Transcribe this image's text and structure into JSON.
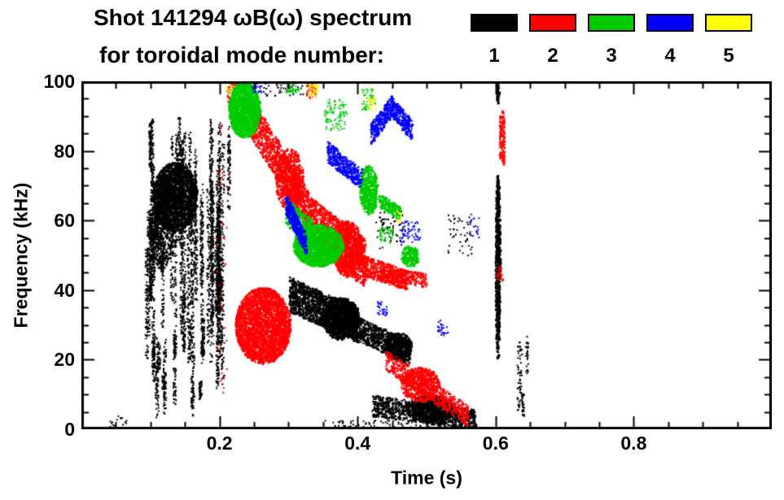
{
  "header": {
    "title_line1": "Shot 141294 ωB(ω) spectrum",
    "title_line2": "for toroidal mode number:"
  },
  "legend": {
    "items": [
      {
        "number": "1",
        "color": "#000000"
      },
      {
        "number": "2",
        "color": "#ff0000"
      },
      {
        "number": "3",
        "color": "#00cc00"
      },
      {
        "number": "4",
        "color": "#0000ff"
      },
      {
        "number": "5",
        "color": "#ffff00"
      }
    ]
  },
  "chart_data": {
    "type": "scatter",
    "title": "Shot 141294 ωB(ω) spectrum",
    "subtitle": "for toroidal mode number:",
    "xlabel": "Time (s)",
    "ylabel": "Frequency (kHz)",
    "xlim": [
      0,
      1.0
    ],
    "ylim": [
      0,
      100
    ],
    "grid": false,
    "frame_color": "#000000",
    "background": "#ffffff",
    "xticks": [
      {
        "v": 0.2,
        "label": "0.2"
      },
      {
        "v": 0.4,
        "label": "0.4"
      },
      {
        "v": 0.6,
        "label": "0.6"
      },
      {
        "v": 0.8,
        "label": "0.8"
      }
    ],
    "yticks": [
      {
        "v": 0,
        "label": "0"
      },
      {
        "v": 20,
        "label": "20"
      },
      {
        "v": 40,
        "label": "40"
      },
      {
        "v": 60,
        "label": "60"
      },
      {
        "v": 80,
        "label": "80"
      },
      {
        "v": 100,
        "label": "100"
      }
    ],
    "xtick_minor_step": 0.05,
    "ytick_minor_step": 5,
    "modes": [
      {
        "mode": 1,
        "label": "1",
        "color": "#000000"
      },
      {
        "mode": 2,
        "label": "2",
        "color": "#ff0000"
      },
      {
        "mode": 3,
        "label": "3",
        "color": "#00cc00"
      },
      {
        "mode": 4,
        "label": "4",
        "color": "#0000ff"
      },
      {
        "mode": 5,
        "label": "5",
        "color": "#ffff00"
      }
    ],
    "clusters": [
      {
        "mode": 1,
        "kind": "streaks",
        "t0": 0.09,
        "t1": 0.2,
        "fLo": 18,
        "fHi": 92,
        "count": 42,
        "pts": 90,
        "minSpan": 4,
        "maxSpan": 30
      },
      {
        "mode": 1,
        "kind": "blob",
        "t": 0.135,
        "f": 67,
        "dt": 0.032,
        "df": 10,
        "n": 1800
      },
      {
        "mode": 1,
        "kind": "blob",
        "t": 0.115,
        "f": 60,
        "dt": 0.018,
        "df": 14,
        "n": 700
      },
      {
        "mode": 1,
        "kind": "streaks",
        "t0": 0.1,
        "t1": 0.19,
        "fLo": 3,
        "fHi": 30,
        "count": 14,
        "pts": 40,
        "minSpan": 2,
        "maxSpan": 10
      },
      {
        "mode": 1,
        "kind": "streaks",
        "t0": 0.195,
        "t1": 0.215,
        "fLo": 10,
        "fHi": 95,
        "count": 7,
        "pts": 80,
        "minSpan": 8,
        "maxSpan": 35
      },
      {
        "mode": 1,
        "kind": "band",
        "t0": 0.3,
        "f0": 39,
        "t1": 0.4,
        "f1": 30,
        "w": 5,
        "n": 1500
      },
      {
        "mode": 1,
        "kind": "blob",
        "t": 0.375,
        "f": 32,
        "dt": 0.027,
        "df": 6,
        "n": 1100
      },
      {
        "mode": 1,
        "kind": "band",
        "t0": 0.4,
        "f0": 29,
        "t1": 0.475,
        "f1": 22,
        "w": 3.5,
        "n": 700
      },
      {
        "mode": 1,
        "kind": "blob",
        "t": 0.458,
        "f": 24,
        "dt": 0.02,
        "df": 4,
        "n": 500
      },
      {
        "mode": 1,
        "kind": "band",
        "t0": 0.42,
        "f0": 7,
        "t1": 0.57,
        "f1": 3,
        "w": 3,
        "n": 900
      },
      {
        "mode": 1,
        "kind": "blob",
        "t": 0.505,
        "f": 6,
        "dt": 0.035,
        "df": 4,
        "n": 900
      },
      {
        "mode": 1,
        "kind": "blob",
        "t": 0.602,
        "f": 47,
        "dt": 0.0035,
        "df": 27,
        "n": 800
      },
      {
        "mode": 1,
        "kind": "blob",
        "t": 0.602,
        "f": 97,
        "dt": 0.002,
        "df": 3,
        "n": 80
      },
      {
        "mode": 1,
        "kind": "streaks",
        "t0": 0.625,
        "t1": 0.655,
        "fLo": 2,
        "fHi": 28,
        "count": 4,
        "pts": 30,
        "minSpan": 2,
        "maxSpan": 10
      },
      {
        "mode": 1,
        "kind": "speckle",
        "t0": 0.26,
        "t1": 0.34,
        "f0": 96,
        "f1": 100,
        "n": 50
      },
      {
        "mode": 1,
        "kind": "speckle",
        "t0": 0.425,
        "t1": 0.465,
        "f0": 52,
        "f1": 64,
        "n": 70
      },
      {
        "mode": 1,
        "kind": "speckle",
        "t0": 0.53,
        "t1": 0.565,
        "f0": 50,
        "f1": 62,
        "n": 45
      },
      {
        "mode": 1,
        "kind": "speckle",
        "t0": 0.04,
        "t1": 0.065,
        "f0": 0,
        "f1": 4,
        "n": 18
      },
      {
        "mode": 1,
        "kind": "speckle",
        "t0": 0.35,
        "t1": 0.55,
        "f0": 0,
        "f1": 3,
        "n": 120
      },
      {
        "mode": 2,
        "kind": "blob",
        "t": 0.262,
        "f": 30,
        "dt": 0.04,
        "df": 11,
        "n": 3000
      },
      {
        "mode": 2,
        "kind": "band",
        "t0": 0.245,
        "f0": 90,
        "t1": 0.33,
        "f1": 62,
        "w": 6,
        "n": 1200
      },
      {
        "mode": 2,
        "kind": "blob",
        "t": 0.3,
        "f": 72,
        "dt": 0.02,
        "df": 9,
        "n": 600
      },
      {
        "mode": 2,
        "kind": "band",
        "t0": 0.33,
        "f0": 60,
        "t1": 0.41,
        "f1": 48,
        "w": 7,
        "n": 1400
      },
      {
        "mode": 2,
        "kind": "blob",
        "t": 0.385,
        "f": 52,
        "dt": 0.022,
        "df": 8,
        "n": 800
      },
      {
        "mode": 2,
        "kind": "band",
        "t0": 0.41,
        "f0": 47,
        "t1": 0.47,
        "f1": 43,
        "w": 3,
        "n": 420
      },
      {
        "mode": 2,
        "kind": "band",
        "t0": 0.43,
        "f0": 45,
        "t1": 0.5,
        "f1": 43,
        "w": 2,
        "n": 300
      },
      {
        "mode": 2,
        "kind": "band",
        "t0": 0.44,
        "f0": 20,
        "t1": 0.56,
        "f1": 4,
        "w": 3,
        "n": 650
      },
      {
        "mode": 2,
        "kind": "blob",
        "t": 0.49,
        "f": 13,
        "dt": 0.028,
        "df": 5,
        "n": 600
      },
      {
        "mode": 2,
        "kind": "streaks",
        "t0": 0.595,
        "t1": 0.612,
        "fLo": 76,
        "fHi": 92,
        "count": 2,
        "pts": 90,
        "minSpan": 5,
        "maxSpan": 8
      },
      {
        "mode": 2,
        "kind": "speckle",
        "t0": 0.21,
        "t1": 0.235,
        "f0": 94,
        "f1": 100,
        "n": 80
      },
      {
        "mode": 2,
        "kind": "speckle",
        "t0": 0.325,
        "t1": 0.34,
        "f0": 95,
        "f1": 100,
        "n": 40
      },
      {
        "mode": 2,
        "kind": "speckle",
        "t0": 0.195,
        "t1": 0.21,
        "f0": 10,
        "f1": 90,
        "n": 40
      },
      {
        "mode": 2,
        "kind": "speckle",
        "t0": 0.6,
        "t1": 0.61,
        "f0": 43,
        "f1": 47,
        "n": 25
      },
      {
        "mode": 3,
        "kind": "blob",
        "t": 0.235,
        "f": 92,
        "dt": 0.023,
        "df": 8,
        "n": 1600
      },
      {
        "mode": 3,
        "kind": "band",
        "t0": 0.295,
        "f0": 63,
        "t1": 0.335,
        "f1": 56,
        "w": 4,
        "n": 450
      },
      {
        "mode": 3,
        "kind": "blob",
        "t": 0.342,
        "f": 53,
        "dt": 0.036,
        "df": 6,
        "n": 1800
      },
      {
        "mode": 3,
        "kind": "blob",
        "t": 0.415,
        "f": 69,
        "dt": 0.013,
        "df": 7,
        "n": 550
      },
      {
        "mode": 3,
        "kind": "band",
        "t0": 0.43,
        "f0": 66,
        "t1": 0.462,
        "f1": 62,
        "w": 2,
        "n": 180
      },
      {
        "mode": 3,
        "kind": "speckle",
        "t0": 0.35,
        "t1": 0.385,
        "f0": 86,
        "f1": 95,
        "n": 90
      },
      {
        "mode": 3,
        "kind": "blob",
        "t": 0.475,
        "f": 50,
        "dt": 0.013,
        "df": 3,
        "n": 220
      },
      {
        "mode": 3,
        "kind": "speckle",
        "t0": 0.405,
        "t1": 0.425,
        "f0": 92,
        "f1": 98,
        "n": 50
      },
      {
        "mode": 3,
        "kind": "speckle",
        "t0": 0.295,
        "t1": 0.315,
        "f0": 97,
        "f1": 100,
        "n": 40
      },
      {
        "mode": 3,
        "kind": "speckle",
        "t0": 0.43,
        "t1": 0.45,
        "f0": 54,
        "f1": 58,
        "n": 40
      },
      {
        "mode": 4,
        "kind": "band",
        "t0": 0.295,
        "f0": 65,
        "t1": 0.325,
        "f1": 53,
        "w": 3,
        "n": 380
      },
      {
        "mode": 4,
        "kind": "band",
        "t0": 0.355,
        "f0": 80,
        "t1": 0.405,
        "f1": 72,
        "w": 3,
        "n": 380
      },
      {
        "mode": 4,
        "kind": "band",
        "t0": 0.418,
        "f0": 85,
        "t1": 0.448,
        "f1": 93,
        "w": 3,
        "n": 300
      },
      {
        "mode": 4,
        "kind": "band",
        "t0": 0.448,
        "f0": 93,
        "t1": 0.478,
        "f1": 86,
        "w": 3,
        "n": 260
      },
      {
        "mode": 4,
        "kind": "speckle",
        "t0": 0.245,
        "t1": 0.26,
        "f0": 97,
        "f1": 100,
        "n": 30
      },
      {
        "mode": 4,
        "kind": "speckle",
        "t0": 0.46,
        "t1": 0.49,
        "f0": 54,
        "f1": 60,
        "n": 60
      },
      {
        "mode": 4,
        "kind": "speckle",
        "t0": 0.428,
        "t1": 0.442,
        "f0": 33,
        "f1": 37,
        "n": 30
      },
      {
        "mode": 4,
        "kind": "speckle",
        "t0": 0.515,
        "t1": 0.53,
        "f0": 27,
        "f1": 32,
        "n": 25
      },
      {
        "mode": 4,
        "kind": "speckle",
        "t0": 0.56,
        "t1": 0.575,
        "f0": 55,
        "f1": 62,
        "n": 20
      },
      {
        "mode": 5,
        "kind": "speckle",
        "t0": 0.328,
        "t1": 0.342,
        "f0": 96,
        "f1": 100,
        "n": 40
      },
      {
        "mode": 5,
        "kind": "speckle",
        "t0": 0.413,
        "t1": 0.427,
        "f0": 92,
        "f1": 96,
        "n": 28
      },
      {
        "mode": 5,
        "kind": "speckle",
        "t0": 0.208,
        "t1": 0.218,
        "f0": 97,
        "f1": 100,
        "n": 15
      },
      {
        "mode": 5,
        "kind": "speckle",
        "t0": 0.455,
        "t1": 0.465,
        "f0": 59,
        "f1": 63,
        "n": 12
      }
    ]
  }
}
